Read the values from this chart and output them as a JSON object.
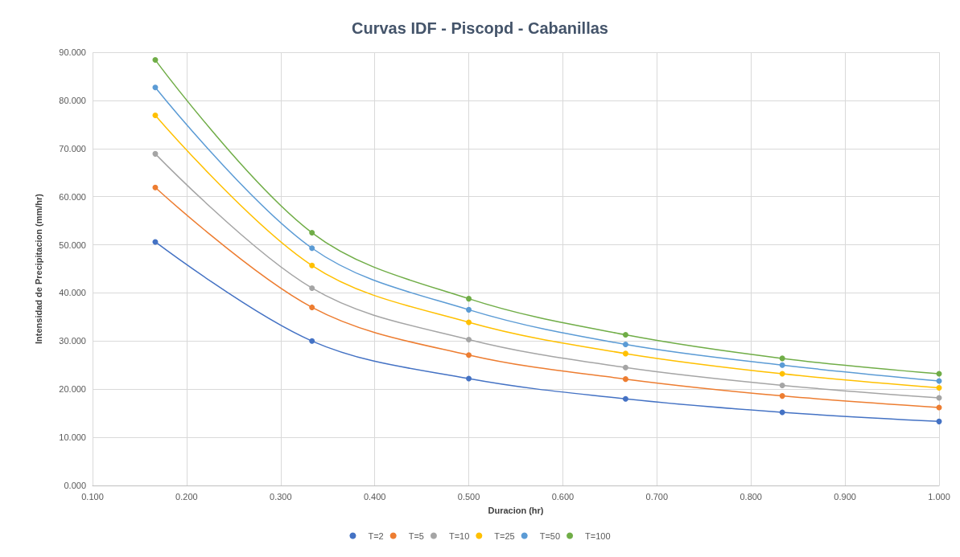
{
  "chart_data": {
    "type": "line",
    "title": "Curvas IDF - Piscopd - Cabanillas",
    "xlabel": "Duracion (hr)",
    "ylabel": "Intensidad de Precipitacion (mm/hr)",
    "x": [
      0.1667,
      0.3333,
      0.5,
      0.6667,
      0.8333,
      1.0
    ],
    "series": [
      {
        "name": "T=2",
        "color": "#4472c4",
        "values": [
          50.6,
          30.0,
          22.2,
          18.0,
          15.2,
          13.3
        ]
      },
      {
        "name": "T=5",
        "color": "#ed7d31",
        "values": [
          61.9,
          37.0,
          27.1,
          22.1,
          18.6,
          16.2
        ]
      },
      {
        "name": "T=10",
        "color": "#a5a5a5",
        "values": [
          68.9,
          41.0,
          30.3,
          24.5,
          20.8,
          18.2
        ]
      },
      {
        "name": "T=25",
        "color": "#ffc000",
        "values": [
          76.9,
          45.7,
          33.9,
          27.4,
          23.2,
          20.3
        ]
      },
      {
        "name": "T=50",
        "color": "#5b9bd5",
        "values": [
          82.7,
          49.3,
          36.5,
          29.3,
          25.0,
          21.7
        ]
      },
      {
        "name": "T=100",
        "color": "#70ad47",
        "values": [
          88.4,
          52.5,
          38.8,
          31.3,
          26.4,
          23.2
        ]
      }
    ],
    "xlim": [
      0.1,
      1.0
    ],
    "xticks": [
      {
        "value": 0.1,
        "label": "0.100"
      },
      {
        "value": 0.2,
        "label": "0.200"
      },
      {
        "value": 0.3,
        "label": "0.300"
      },
      {
        "value": 0.4,
        "label": "0.400"
      },
      {
        "value": 0.5,
        "label": "0.500"
      },
      {
        "value": 0.6,
        "label": "0.600"
      },
      {
        "value": 0.7,
        "label": "0.700"
      },
      {
        "value": 0.8,
        "label": "0.800"
      },
      {
        "value": 0.9,
        "label": "0.900"
      },
      {
        "value": 1.0,
        "label": "1.000"
      }
    ],
    "ylim": [
      0,
      90
    ],
    "yticks": [
      {
        "value": 0,
        "label": "0.000"
      },
      {
        "value": 10,
        "label": "10.000"
      },
      {
        "value": 20,
        "label": "20.000"
      },
      {
        "value": 30,
        "label": "30.000"
      },
      {
        "value": 40,
        "label": "40.000"
      },
      {
        "value": 50,
        "label": "50.000"
      },
      {
        "value": 60,
        "label": "60.000"
      },
      {
        "value": 70,
        "label": "70.000"
      },
      {
        "value": 80,
        "label": "80.000"
      },
      {
        "value": 90,
        "label": "90.000"
      }
    ],
    "grid": true,
    "legend": "bottom",
    "marker": "circle",
    "line_style": "solid"
  }
}
